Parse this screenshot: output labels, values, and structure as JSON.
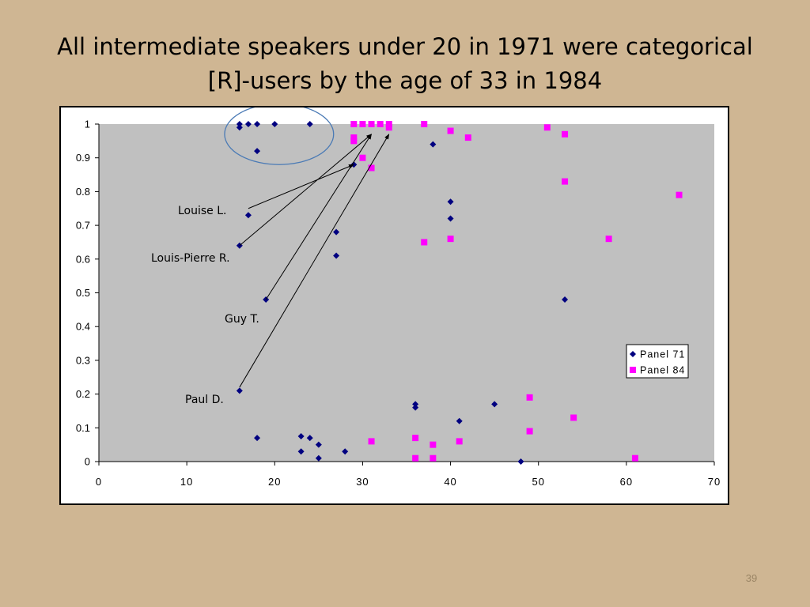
{
  "slide": {
    "title_line1": "All intermediate speakers under 20 in 1971 were categorical",
    "title_line2": "[R]-users by the age of 33 in 1984",
    "page_number": "39"
  },
  "colors": {
    "background": "#cfb693",
    "plot_area": "#c0c0c0",
    "panel71": "#000080",
    "panel84": "#ff00ff",
    "highlight_ellipse": "#4a7ab5"
  },
  "chart_data": {
    "type": "scatter",
    "title": "",
    "xlabel": "",
    "ylabel": "",
    "xlim": [
      0,
      70
    ],
    "ylim": [
      0,
      1
    ],
    "x_ticks": [
      0,
      10,
      20,
      30,
      40,
      50,
      60,
      70
    ],
    "y_ticks": [
      "0",
      "0.1",
      "0.2",
      "0.3",
      "0.4",
      "0.5",
      "0.6",
      "0.7",
      "0.8",
      "0.9",
      "1"
    ],
    "grid": false,
    "legend_position": "right",
    "series": [
      {
        "name": "Panel 71",
        "marker": "diamond",
        "color": "#000080",
        "points": [
          [
            16,
            1.0
          ],
          [
            16,
            0.99
          ],
          [
            17,
            1.0
          ],
          [
            18,
            1.0
          ],
          [
            20,
            1.0
          ],
          [
            24,
            1.0
          ],
          [
            18,
            0.92
          ],
          [
            29,
            0.88
          ],
          [
            38,
            0.94
          ],
          [
            17,
            0.73
          ],
          [
            16,
            0.64
          ],
          [
            27,
            0.68
          ],
          [
            27,
            0.61
          ],
          [
            40,
            0.77
          ],
          [
            40,
            0.72
          ],
          [
            19,
            0.48
          ],
          [
            53,
            0.48
          ],
          [
            16,
            0.21
          ],
          [
            36,
            0.17
          ],
          [
            36,
            0.16
          ],
          [
            45,
            0.17
          ],
          [
            41,
            0.12
          ],
          [
            18,
            0.07
          ],
          [
            23,
            0.075
          ],
          [
            24,
            0.07
          ],
          [
            25,
            0.05
          ],
          [
            23,
            0.03
          ],
          [
            25,
            0.01
          ],
          [
            28,
            0.03
          ],
          [
            48,
            0.0
          ]
        ]
      },
      {
        "name": "Panel 84",
        "marker": "square",
        "color": "#ff00ff",
        "points": [
          [
            29,
            1.0
          ],
          [
            30,
            1.0
          ],
          [
            31,
            1.0
          ],
          [
            32,
            1.0
          ],
          [
            33,
            1.0
          ],
          [
            33,
            0.99
          ],
          [
            37,
            1.0
          ],
          [
            29,
            0.96
          ],
          [
            29,
            0.95
          ],
          [
            30,
            0.9
          ],
          [
            31,
            0.87
          ],
          [
            40,
            0.98
          ],
          [
            42,
            0.96
          ],
          [
            51,
            0.99
          ],
          [
            53,
            0.97
          ],
          [
            53,
            0.83
          ],
          [
            66,
            0.79
          ],
          [
            37,
            0.65
          ],
          [
            40,
            0.66
          ],
          [
            58,
            0.66
          ],
          [
            49,
            0.19
          ],
          [
            54,
            0.13
          ],
          [
            49,
            0.09
          ],
          [
            31,
            0.06
          ],
          [
            36,
            0.07
          ],
          [
            38,
            0.05
          ],
          [
            41,
            0.06
          ],
          [
            36,
            0.01
          ],
          [
            38,
            0.01
          ],
          [
            61,
            0.01
          ]
        ]
      }
    ],
    "annotations": [
      {
        "text": "Louise L.",
        "from": [
          17,
          0.75
        ],
        "to": [
          29,
          0.88
        ]
      },
      {
        "text": "Louis-Pierre R.",
        "from": [
          16,
          0.64
        ],
        "to": [
          31,
          0.97
        ]
      },
      {
        "text": "Guy T.",
        "from": [
          19,
          0.48
        ],
        "to": [
          31,
          0.97
        ]
      },
      {
        "text": "Paul D.",
        "from": [
          16,
          0.22
        ],
        "to": [
          33,
          0.97
        ]
      }
    ],
    "highlight": {
      "shape": "ellipse",
      "center": [
        20.5,
        0.97
      ],
      "rx_units": 6.2,
      "ry_units": 0.09
    }
  }
}
